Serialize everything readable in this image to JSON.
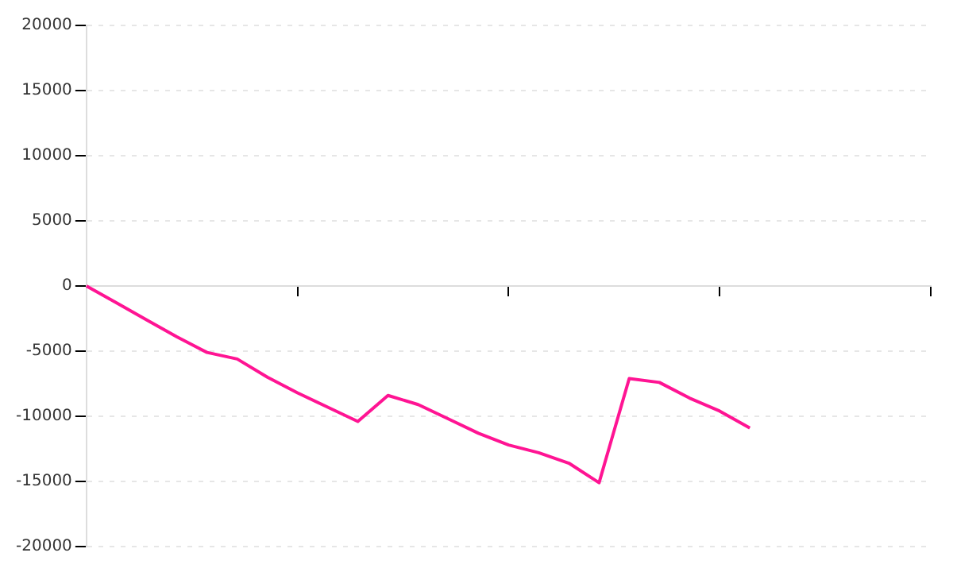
{
  "chart_data": {
    "type": "line",
    "categories": [
      null,
      null,
      null,
      null,
      null,
      null,
      null,
      null,
      null,
      null,
      null,
      null,
      null,
      null,
      null,
      null,
      null,
      null,
      null,
      null,
      null,
      null,
      null,
      null,
      null,
      null,
      null,
      null,
      null
    ],
    "series": [
      {
        "color": "#ff1493",
        "values": [
          0,
          -1300,
          -2600,
          -3900,
          -5100,
          -5600,
          -7000,
          -8200,
          -9300,
          -10400,
          -8400,
          -9100,
          -10200,
          -11300,
          -12200,
          -12800,
          -13600,
          -15100,
          -7100,
          -7400,
          -8600,
          -9600,
          -10900,
          null,
          null,
          null,
          null,
          null,
          null
        ]
      }
    ],
    "ylim": [
      -20000,
      20000
    ],
    "yticks": [
      -20000,
      -15000,
      -10000,
      -5000,
      0,
      5000,
      10000,
      15000,
      20000
    ],
    "grid": "y",
    "legend": false,
    "marker": "none",
    "line_style": "solid",
    "tick_labels": "y"
  }
}
